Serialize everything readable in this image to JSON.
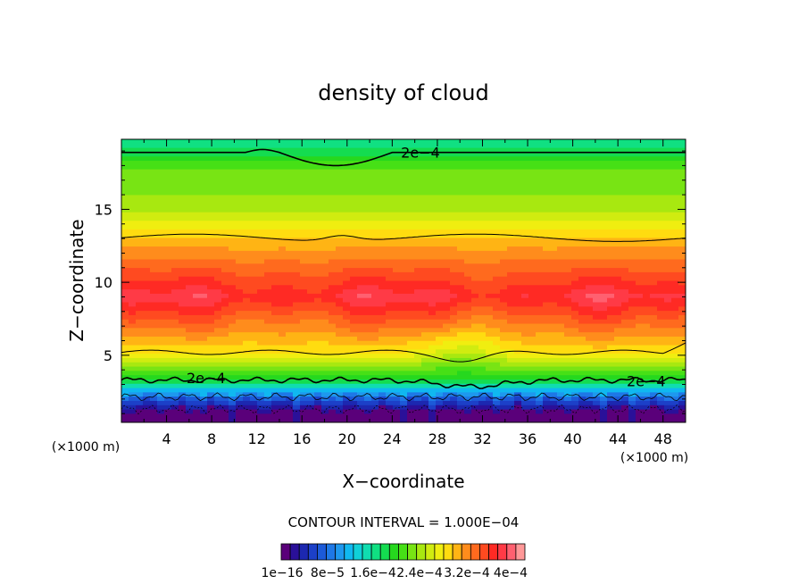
{
  "chart_data": {
    "type": "heatmap",
    "title": "density of cloud",
    "xlabel": "X−coordinate",
    "ylabel": "Z−coordinate",
    "x_unit": "(×1000 m)",
    "xlim": [
      0,
      50
    ],
    "ylim": [
      0.4,
      19.8
    ],
    "x_ticks": [
      4,
      8,
      12,
      16,
      20,
      24,
      28,
      32,
      36,
      40,
      44,
      48
    ],
    "y_ticks": [
      5,
      10,
      15
    ],
    "contour_interval_text": "CONTOUR INTERVAL = 1.000E−04",
    "contour_labels": [
      "2e−4",
      "2e−4",
      "2e−4"
    ],
    "colorbar": {
      "tick_labels": [
        "1e−16",
        "8e−5",
        "1.6e−4",
        "2.4e−4",
        "3.2e−4",
        "4e−4"
      ],
      "colors": [
        "#5a007a",
        "#2a1099",
        "#1c28b0",
        "#1c40c8",
        "#1c5ad8",
        "#1e78e6",
        "#1e98ee",
        "#10b8f0",
        "#10d0d8",
        "#10ddb0",
        "#10e082",
        "#14dc50",
        "#26d81e",
        "#46e016",
        "#78e414",
        "#a8e810",
        "#d0ec10",
        "#f0ee10",
        "#ffdc10",
        "#ffb414",
        "#ff8c1c",
        "#ff6a1e",
        "#ff4a20",
        "#ff2a24",
        "#ff3a46",
        "#ff6070",
        "#ff9898"
      ]
    },
    "profile": [
      {
        "z": 19.6,
        "value": 0.00016
      },
      {
        "z": 18.0,
        "value": 0.00022
      },
      {
        "z": 15.0,
        "value": 0.00025
      },
      {
        "z": 13.0,
        "value": 0.000305
      },
      {
        "z": 9.0,
        "value": 0.000385
      },
      {
        "z": 5.2,
        "value": 0.00029
      },
      {
        "z": 3.4,
        "value": 0.0002
      },
      {
        "z": 2.0,
        "value": 7e-05
      },
      {
        "z": 1.0,
        "value": 1e-16
      }
    ]
  }
}
